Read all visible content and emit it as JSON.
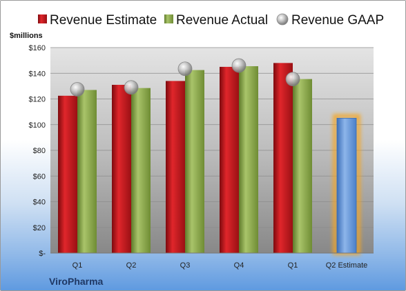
{
  "chart_data": {
    "type": "bar",
    "title": "",
    "company": "ViroPharma",
    "ylabel": "$millions",
    "ylim": [
      0,
      160
    ],
    "yticks": [
      0,
      20,
      40,
      60,
      80,
      100,
      120,
      140,
      160
    ],
    "ytick_labels": [
      "$-",
      "$20",
      "$40",
      "$60",
      "$80",
      "$100",
      "$120",
      "$140",
      "$160"
    ],
    "categories": [
      "Q1",
      "Q2",
      "Q3",
      "Q4",
      "Q1",
      "Q2 Estimate"
    ],
    "legend_position": "top",
    "grid": true,
    "series": [
      {
        "name": "Revenue Estimate",
        "kind": "bar",
        "color": "#c0161c",
        "values": [
          122.5,
          131,
          134,
          145,
          148,
          null
        ]
      },
      {
        "name": "Revenue Actual",
        "kind": "bar",
        "color": "#8aa84a",
        "values": [
          127,
          128.5,
          142.5,
          145.5,
          135.5,
          null
        ]
      },
      {
        "name": "Revenue GAAP",
        "kind": "marker",
        "color": "#b8b8b8",
        "values": [
          127.5,
          129,
          143.5,
          146,
          135.5,
          null
        ]
      },
      {
        "name": "Q2 Estimate",
        "kind": "bar",
        "color": "#5b8fd6",
        "highlight": "#f5a623",
        "values": [
          null,
          null,
          null,
          null,
          null,
          105
        ]
      }
    ]
  }
}
